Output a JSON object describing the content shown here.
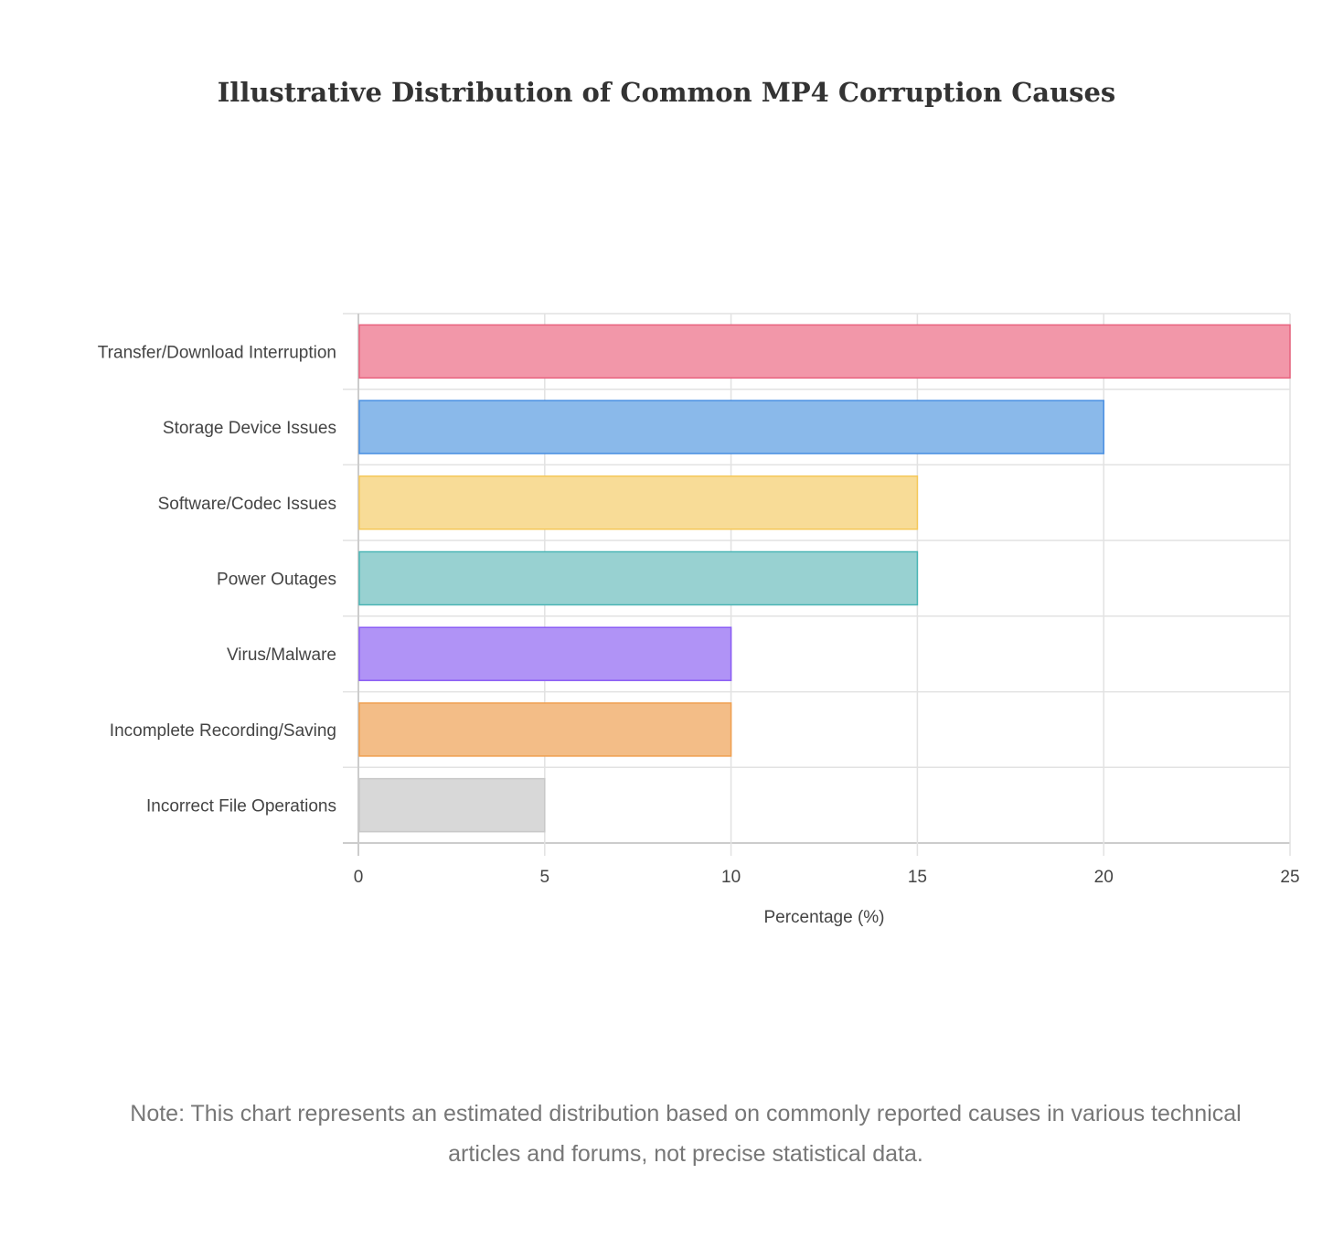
{
  "chart_data": {
    "type": "bar",
    "orientation": "horizontal",
    "title": "Illustrative Distribution of Common MP4 Corruption Causes",
    "xlabel": "Percentage (%)",
    "ylabel": "",
    "xlim": [
      0,
      25
    ],
    "xticks": [
      0,
      5,
      10,
      15,
      20,
      25
    ],
    "grid": true,
    "categories": [
      "Transfer/Download Interruption",
      "Storage Device Issues",
      "Software/Codec Issues",
      "Power Outages",
      "Virus/Malware",
      "Incomplete Recording/Saving",
      "Incorrect File Operations"
    ],
    "values": [
      25,
      20,
      15,
      15,
      10,
      10,
      5
    ],
    "colors": [
      "#f297a9",
      "#8ab9ea",
      "#f8dc97",
      "#98d1d1",
      "#b093f6",
      "#f3bd87",
      "#d8d8d8"
    ],
    "border_colors": [
      "#e8637e",
      "#4a90e2",
      "#f5c85a",
      "#4bb5b5",
      "#8a5cf5",
      "#f0a050",
      "#c8c8c8"
    ]
  },
  "note": "Note: This chart represents an estimated distribution based on commonly reported causes in various technical articles and forums, not precise statistical data."
}
